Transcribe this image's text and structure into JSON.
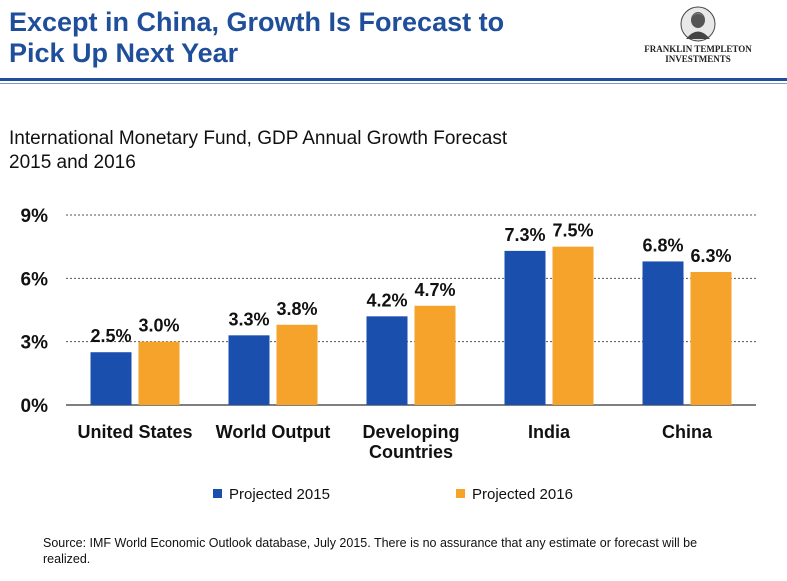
{
  "header": {
    "title_line1": "Except in China, Growth Is Forecast to",
    "title_line2": "Pick Up Next Year",
    "logo_line1": "FRANKLIN TEMPLETON",
    "logo_line2": "INVESTMENTS",
    "logo_icon": "portrait-medallion-icon"
  },
  "subtitle": {
    "line1": "International Monetary Fund, GDP Annual  Growth Forecast",
    "line2": "2015 and 2016"
  },
  "footer": {
    "source": "Source: IMF World Economic Outlook database, July 2015. There is no assurance that any estimate or forecast will be realized."
  },
  "colors": {
    "title": "#1f4e9a",
    "series_2015": "#1a4fad",
    "series_2016": "#f5a32a",
    "gridline": "#555555"
  },
  "chart_data": {
    "type": "bar",
    "categories": [
      "United States",
      "World Output",
      "Developing Countries",
      "India",
      "China"
    ],
    "category_label_lines": [
      [
        "United States"
      ],
      [
        "World Output"
      ],
      [
        "Developing",
        "Countries"
      ],
      [
        "India"
      ],
      [
        "China"
      ]
    ],
    "series": [
      {
        "name": "Projected 2015",
        "values": [
          2.5,
          3.3,
          4.2,
          7.3,
          6.8
        ],
        "labels": [
          "2.5%",
          "3.3%",
          "4.2%",
          "7.3%",
          "6.8%"
        ],
        "color": "#1a4fad"
      },
      {
        "name": "Projected 2016",
        "values": [
          3.0,
          3.8,
          4.7,
          7.5,
          6.3
        ],
        "labels": [
          "3.0%",
          "3.8%",
          "4.7%",
          "7.5%",
          "6.3%"
        ],
        "color": "#f5a32a"
      }
    ],
    "yticks": [
      0,
      3,
      6,
      9
    ],
    "ytick_labels": [
      "0%",
      "3%",
      "6%",
      "9%"
    ],
    "ylim": [
      0,
      9
    ],
    "grid": true,
    "gridline_style": "dotted",
    "legend_position": "bottom"
  }
}
